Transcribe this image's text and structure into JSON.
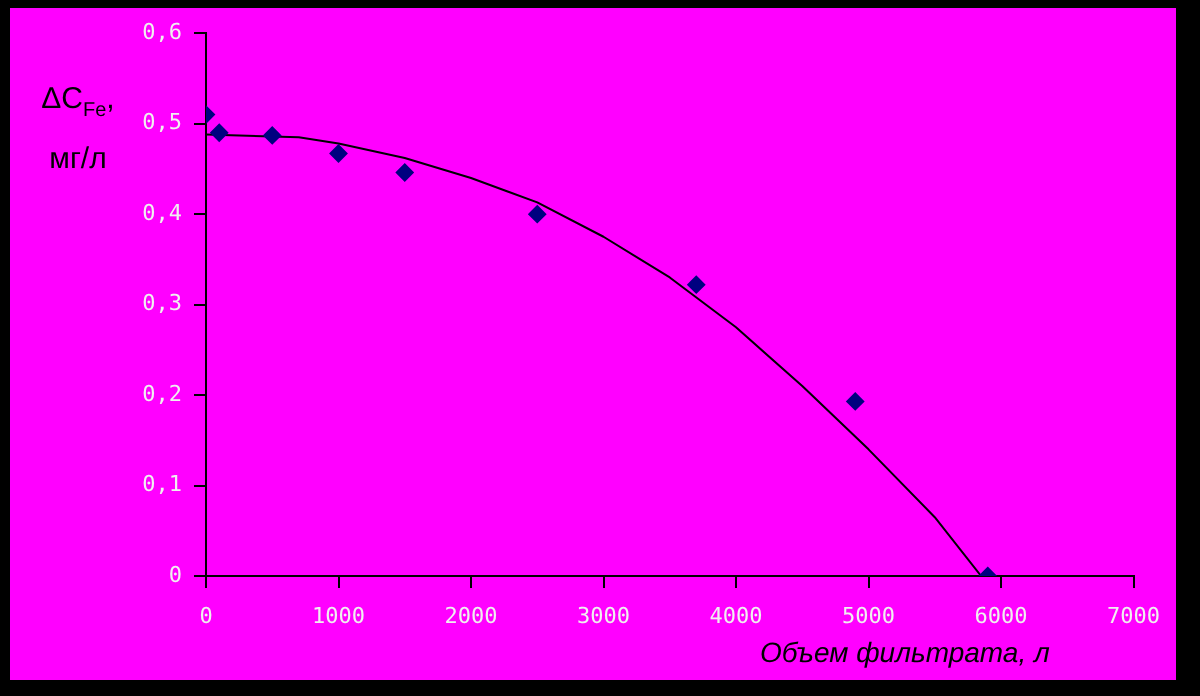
{
  "chart_data": {
    "type": "scatter",
    "ylabel": "ΔC$_{Fe}$, мг/л",
    "xlabel": "Объем фильтрата, л",
    "xlim": [
      0,
      7000
    ],
    "xticks": [
      0,
      1000,
      2000,
      3000,
      4000,
      5000,
      6000,
      7000
    ],
    "ylim": [
      0,
      0.6
    ],
    "yticks": [
      0,
      {
        "value": 0.1,
        "label": "0,1"
      },
      {
        "value": 0.2,
        "label": "0,2"
      },
      {
        "value": 0.3,
        "label": "0,3"
      },
      {
        "value": 0.4,
        "label": "0,4"
      },
      {
        "value": 0.5,
        "label": "0,5"
      },
      {
        "value": 0.6,
        "label": "0,6"
      }
    ],
    "grid": false,
    "legend": false,
    "series": [
      {
        "color": "#000080",
        "marker": "diamond",
        "x": [
          0,
          100,
          500,
          1000,
          1500,
          2500,
          3700,
          4900,
          5900
        ],
        "values": [
          0.51,
          0.49,
          0.487,
          0.467,
          0.446,
          0.4,
          0.322,
          0.193,
          0
        ]
      },
      {
        "type": "line",
        "color": "#000000",
        "marker": "none",
        "line_style": "solid",
        "x": [
          0,
          700,
          1000,
          1500,
          2000,
          2500,
          3000,
          3500,
          4000,
          4500,
          5000,
          5500,
          5850
        ],
        "values": [
          0.488,
          0.485,
          0.478,
          0.462,
          0.44,
          0.413,
          0.375,
          0.33,
          0.275,
          0.21,
          0.14,
          0.065,
          0
        ]
      }
    ]
  }
}
